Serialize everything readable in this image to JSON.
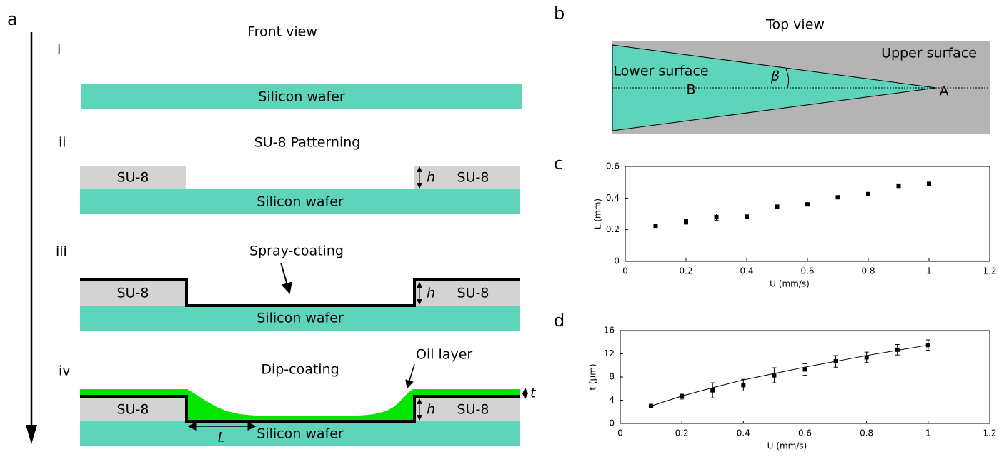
{
  "diagram": {
    "panel_labels": {
      "a": "a",
      "b": "b",
      "c": "c",
      "d": "d"
    },
    "front_view": {
      "title": "Front view",
      "steps": [
        {
          "numeral": "i"
        },
        {
          "numeral": "ii",
          "title": "SU-8 Patterning"
        },
        {
          "numeral": "iii",
          "title": "Spray-coating"
        },
        {
          "numeral": "iv",
          "title": "Dip-coating",
          "annotation": "Oil layer"
        }
      ],
      "wafer": "Silicon wafer",
      "su8": "SU-8",
      "height": "h",
      "thickness": "t",
      "length": "L"
    },
    "top_view": {
      "title": "Top view",
      "upper": "Upper surface",
      "lower": "Lower surface",
      "angle": "β",
      "point_b": "B",
      "point_a": "A"
    }
  },
  "chart_data": [
    {
      "type": "scatter",
      "xlabel": "U (mm/s)",
      "ylabel": "L (mm)",
      "x": [
        0.1,
        0.2,
        0.3,
        0.4,
        0.5,
        0.6,
        0.7,
        0.8,
        0.9,
        1.0
      ],
      "values": [
        0.225,
        0.25,
        0.28,
        0.283,
        0.345,
        0.36,
        0.405,
        0.425,
        0.478,
        0.49
      ],
      "errors": [
        0.01,
        0.015,
        0.02,
        0.008,
        0.012,
        0.01,
        0.008,
        0.008,
        0.012,
        0.01
      ],
      "color": "#000000",
      "xlim": [
        0,
        1.2
      ],
      "xticks": [
        0,
        0.2,
        0.4,
        0.6,
        0.8,
        1,
        1.2
      ],
      "ylim": [
        0,
        0.6
      ],
      "yticks": [
        0,
        0.2,
        0.4,
        0.6
      ]
    },
    {
      "type": "scatter",
      "xlabel": "U (mm/s)",
      "ylabel": "t (μm)",
      "x": [
        0.1,
        0.2,
        0.3,
        0.4,
        0.5,
        0.6,
        0.7,
        0.8,
        0.9,
        1.0
      ],
      "values": [
        3.0,
        4.7,
        5.7,
        6.6,
        8.3,
        9.3,
        10.7,
        11.4,
        12.7,
        13.5
      ],
      "errors": [
        0.3,
        0.5,
        1.3,
        1.0,
        1.3,
        1.0,
        1.0,
        0.9,
        0.9,
        0.9
      ],
      "fit": [
        3.0,
        4.72,
        6.15,
        7.5,
        8.6,
        9.7,
        10.7,
        11.7,
        12.6,
        13.5
      ],
      "color": "#000000",
      "xlim": [
        0,
        1.2
      ],
      "xticks": [
        0,
        0.2,
        0.4,
        0.6,
        0.8,
        1,
        1.2
      ],
      "ylim": [
        0,
        16
      ],
      "yticks": [
        0,
        4,
        8,
        12,
        16
      ]
    }
  ]
}
